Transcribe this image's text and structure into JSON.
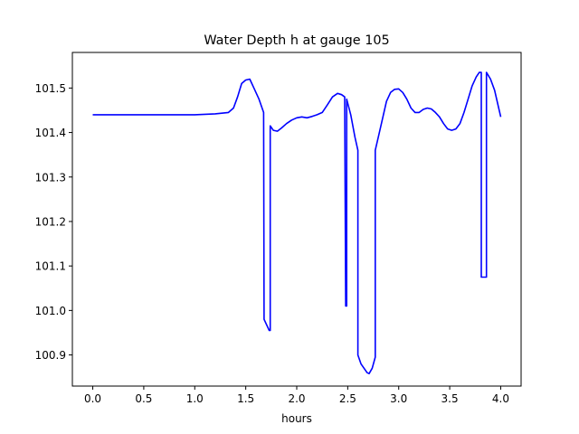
{
  "chart_data": {
    "type": "line",
    "title": "Water Depth h at gauge 105",
    "xlabel": "hours",
    "ylabel": "",
    "xlim": [
      -0.2,
      4.2
    ],
    "ylim": [
      100.83,
      101.58
    ],
    "xticks": [
      0.0,
      0.5,
      1.0,
      1.5,
      2.0,
      2.5,
      3.0,
      3.5,
      4.0
    ],
    "xtick_labels": [
      "0.0",
      "0.5",
      "1.0",
      "1.5",
      "2.0",
      "2.5",
      "3.0",
      "3.5",
      "4.0"
    ],
    "yticks": [
      100.9,
      101.0,
      101.1,
      101.2,
      101.3,
      101.4,
      101.5
    ],
    "ytick_labels": [
      "100.9",
      "101.0",
      "101.1",
      "101.2",
      "101.3",
      "101.4",
      "101.5"
    ],
    "grid": false,
    "series": [
      {
        "color": "#0000ff",
        "x": [
          0.0,
          0.5,
          1.0,
          1.2,
          1.33,
          1.38,
          1.42,
          1.46,
          1.5,
          1.54,
          1.58,
          1.63,
          1.675,
          1.68,
          1.73,
          1.74,
          1.74,
          1.77,
          1.81,
          1.85,
          1.9,
          1.95,
          2.0,
          2.05,
          2.1,
          2.15,
          2.2,
          2.25,
          2.3,
          2.35,
          2.4,
          2.44,
          2.47,
          2.48,
          2.48,
          2.49,
          2.49,
          2.53,
          2.57,
          2.6,
          2.6,
          2.63,
          2.66,
          2.69,
          2.71,
          2.74,
          2.77,
          2.77,
          2.8,
          2.84,
          2.88,
          2.92,
          2.96,
          3.0,
          3.04,
          3.08,
          3.12,
          3.16,
          3.2,
          3.24,
          3.28,
          3.32,
          3.36,
          3.4,
          3.44,
          3.48,
          3.52,
          3.56,
          3.6,
          3.64,
          3.68,
          3.72,
          3.76,
          3.79,
          3.81,
          3.81,
          3.85,
          3.86,
          3.86,
          3.9,
          3.94,
          3.97,
          4.0
        ],
        "y": [
          101.44,
          101.44,
          101.44,
          101.442,
          101.445,
          101.455,
          101.48,
          101.51,
          101.518,
          101.52,
          101.5,
          101.475,
          101.445,
          100.98,
          100.955,
          100.955,
          101.415,
          101.405,
          101.403,
          101.41,
          101.42,
          101.428,
          101.433,
          101.435,
          101.433,
          101.436,
          101.44,
          101.445,
          101.462,
          101.48,
          101.488,
          101.485,
          101.48,
          101.015,
          101.01,
          101.01,
          101.475,
          101.44,
          101.39,
          101.36,
          100.9,
          100.88,
          100.87,
          100.86,
          100.858,
          100.87,
          100.895,
          101.36,
          101.39,
          101.43,
          101.47,
          101.49,
          101.497,
          101.498,
          101.49,
          101.475,
          101.455,
          101.445,
          101.445,
          101.452,
          101.455,
          101.453,
          101.445,
          101.435,
          101.42,
          101.408,
          101.405,
          101.408,
          101.42,
          101.445,
          101.475,
          101.505,
          101.525,
          101.535,
          101.535,
          101.075,
          101.075,
          101.075,
          101.535,
          101.52,
          101.495,
          101.465,
          101.435
        ]
      }
    ]
  }
}
